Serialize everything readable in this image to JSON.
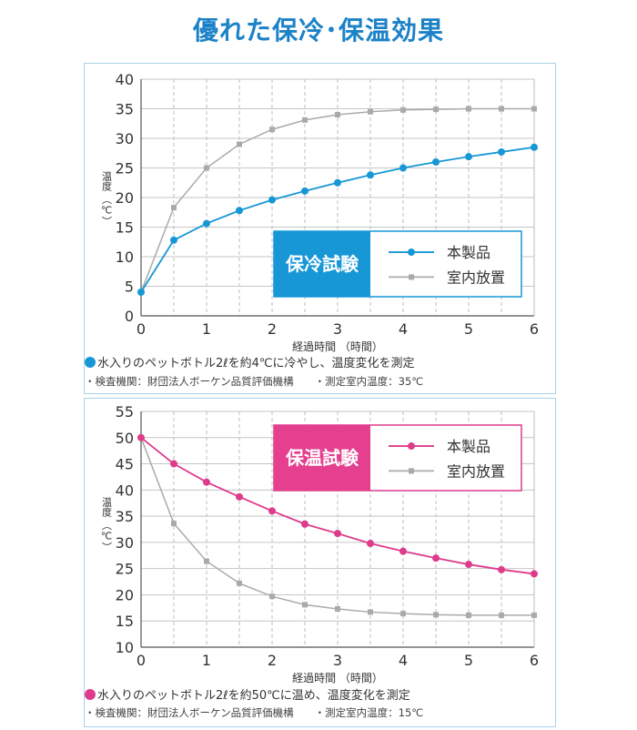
{
  "page": {
    "title": "優れた保冷･保温効果"
  },
  "chart_data": [
    {
      "type": "line",
      "box_label": "保冷試験",
      "accent": "#1797d6",
      "box_color": "#1797d6",
      "xlabel": "経過時間 （時間）",
      "ylabel": "温度 （℃）",
      "xlim": [
        0,
        6
      ],
      "ylim": [
        0,
        40
      ],
      "x_ticks": [
        0,
        1,
        2,
        3,
        4,
        5,
        6
      ],
      "y_ticks": [
        0,
        5,
        10,
        15,
        20,
        25,
        30,
        35,
        40
      ],
      "grid": true,
      "legend_position": "lower-right",
      "x": [
        0,
        0.5,
        1,
        1.5,
        2,
        2.5,
        3,
        3.5,
        4,
        4.5,
        5,
        5.5,
        6
      ],
      "series": [
        {
          "name": "本製品",
          "color": "#1797d6",
          "marker": "circle",
          "values": [
            4,
            12.8,
            15.6,
            17.8,
            19.6,
            21.1,
            22.5,
            23.8,
            25.0,
            26.0,
            26.9,
            27.7,
            28.5
          ]
        },
        {
          "name": "室内放置",
          "color": "#aaaaaa",
          "marker": "square",
          "values": [
            4,
            18.3,
            25.0,
            29.0,
            31.5,
            33.1,
            34.0,
            34.5,
            34.8,
            34.9,
            35.0,
            35.0,
            35.0
          ]
        }
      ],
      "note": "水入りのペットボトル2ℓを約4℃に冷やし、温度変化を測定",
      "note_color": "#1797d6",
      "sub_note": "・検査機関：財団法人ボーケン品質評価機構　　・測定室内温度：35℃"
    },
    {
      "type": "line",
      "box_label": "保温試験",
      "accent": "#de3b8c",
      "box_color": "#e53f8f",
      "xlabel": "経過時間 （時間）",
      "ylabel": "温度 （℃）",
      "xlim": [
        0,
        6
      ],
      "ylim": [
        10,
        55
      ],
      "x_ticks": [
        0,
        1,
        2,
        3,
        4,
        5,
        6
      ],
      "y_ticks": [
        10,
        15,
        20,
        25,
        30,
        35,
        40,
        45,
        50,
        55
      ],
      "grid": true,
      "legend_position": "top-right",
      "x": [
        0,
        0.5,
        1,
        1.5,
        2,
        2.5,
        3,
        3.5,
        4,
        4.5,
        5,
        5.5,
        6
      ],
      "series": [
        {
          "name": "本製品",
          "color": "#de3b8c",
          "marker": "circle",
          "values": [
            50,
            45.0,
            41.5,
            38.7,
            36.0,
            33.5,
            31.7,
            29.8,
            28.3,
            27.0,
            25.8,
            24.8,
            24.0
          ]
        },
        {
          "name": "室内放置",
          "color": "#aaaaaa",
          "marker": "square",
          "values": [
            50,
            33.6,
            26.4,
            22.2,
            19.7,
            18.1,
            17.3,
            16.7,
            16.4,
            16.2,
            16.1,
            16.1,
            16.1
          ]
        }
      ],
      "note": "水入りのペットボトル2ℓを約50℃に温め、温度変化を測定",
      "note_color": "#de3b8c",
      "sub_note": "・検査機関：財団法人ボーケン品質評価機構　　・測定室内温度：15℃"
    }
  ]
}
